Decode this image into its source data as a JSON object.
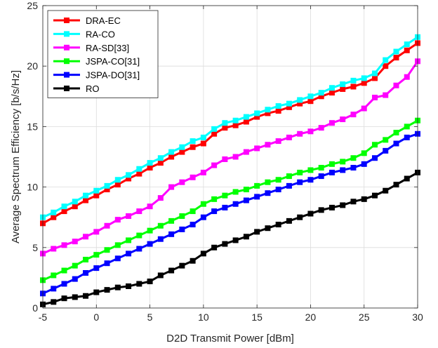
{
  "chart_data": {
    "type": "line",
    "xlabel": "D2D Transmit Power [dBm]",
    "ylabel": "Average Spectrum Efficiency [b/s/Hz]",
    "xlim": [
      -5,
      30
    ],
    "ylim": [
      0,
      25
    ],
    "xticks": [
      -5,
      0,
      5,
      10,
      15,
      20,
      25,
      30
    ],
    "yticks": [
      0,
      5,
      10,
      15,
      20,
      25
    ],
    "xtick_labels": [
      "-5",
      "0",
      "5",
      "10",
      "15",
      "20",
      "25",
      "30"
    ],
    "ytick_labels": [
      "0",
      "5",
      "10",
      "15",
      "20",
      "25"
    ],
    "grid": true,
    "legend_position": "top-left",
    "x": [
      -5,
      -4,
      -3,
      -2,
      -1,
      0,
      1,
      2,
      3,
      4,
      5,
      6,
      7,
      8,
      9,
      10,
      11,
      12,
      13,
      14,
      15,
      16,
      17,
      18,
      19,
      20,
      21,
      22,
      23,
      24,
      25,
      26,
      27,
      28,
      29,
      30
    ],
    "series": [
      {
        "name": "DRA-EC",
        "color": "#ff0000",
        "values": [
          7.0,
          7.5,
          8.0,
          8.4,
          8.9,
          9.3,
          9.8,
          10.2,
          10.7,
          11.1,
          11.6,
          12.0,
          12.5,
          12.9,
          13.3,
          13.6,
          14.4,
          14.9,
          15.1,
          15.4,
          15.8,
          16.1,
          16.3,
          16.6,
          16.9,
          17.1,
          17.5,
          17.8,
          18.1,
          18.3,
          18.6,
          19.0,
          20.0,
          20.7,
          21.3,
          21.9
        ]
      },
      {
        "name": "RA-CO",
        "color": "#00ffff",
        "values": [
          7.5,
          7.9,
          8.4,
          8.8,
          9.3,
          9.7,
          10.1,
          10.6,
          11.0,
          11.5,
          12.0,
          12.4,
          12.9,
          13.3,
          13.8,
          14.1,
          14.8,
          15.3,
          15.5,
          15.8,
          16.1,
          16.4,
          16.7,
          16.9,
          17.2,
          17.5,
          17.8,
          18.2,
          18.5,
          18.8,
          19.0,
          19.4,
          20.5,
          21.2,
          21.8,
          22.4
        ]
      },
      {
        "name": "RA-SD[33]",
        "color": "#ff00ff",
        "values": [
          4.5,
          4.9,
          5.2,
          5.5,
          5.9,
          6.3,
          6.8,
          7.3,
          7.6,
          8.0,
          8.4,
          9.1,
          10.0,
          10.4,
          10.8,
          11.2,
          11.8,
          12.3,
          12.5,
          12.9,
          13.2,
          13.5,
          13.8,
          14.1,
          14.4,
          14.6,
          14.9,
          15.3,
          15.6,
          16.0,
          16.5,
          17.4,
          17.6,
          18.4,
          19.1,
          20.4
        ]
      },
      {
        "name": "JSPA-CO[31]",
        "color": "#00ff00",
        "values": [
          2.3,
          2.7,
          3.1,
          3.5,
          4.0,
          4.4,
          4.8,
          5.2,
          5.6,
          6.0,
          6.4,
          6.8,
          7.2,
          7.6,
          8.0,
          8.6,
          9.0,
          9.3,
          9.6,
          9.8,
          10.1,
          10.4,
          10.6,
          10.9,
          11.2,
          11.4,
          11.6,
          11.9,
          12.1,
          12.4,
          12.8,
          13.5,
          13.9,
          14.5,
          15.0,
          15.5
        ]
      },
      {
        "name": "JSPA-DO[31]",
        "color": "#0000ff",
        "values": [
          1.2,
          1.6,
          2.0,
          2.4,
          2.9,
          3.3,
          3.7,
          4.1,
          4.5,
          4.9,
          5.3,
          5.7,
          6.1,
          6.5,
          6.9,
          7.5,
          8.0,
          8.3,
          8.6,
          8.9,
          9.2,
          9.5,
          9.8,
          10.1,
          10.4,
          10.6,
          10.9,
          11.2,
          11.4,
          11.6,
          11.9,
          12.4,
          13.0,
          13.6,
          14.1,
          14.4
        ]
      },
      {
        "name": "RO",
        "color": "#000000",
        "values": [
          0.3,
          0.5,
          0.8,
          0.9,
          1.0,
          1.3,
          1.5,
          1.7,
          1.8,
          2.0,
          2.2,
          2.7,
          3.1,
          3.5,
          3.9,
          4.5,
          5.0,
          5.3,
          5.6,
          5.9,
          6.3,
          6.6,
          6.9,
          7.2,
          7.5,
          7.8,
          8.1,
          8.3,
          8.5,
          8.8,
          9.0,
          9.3,
          9.7,
          10.2,
          10.7,
          11.2
        ]
      }
    ]
  }
}
